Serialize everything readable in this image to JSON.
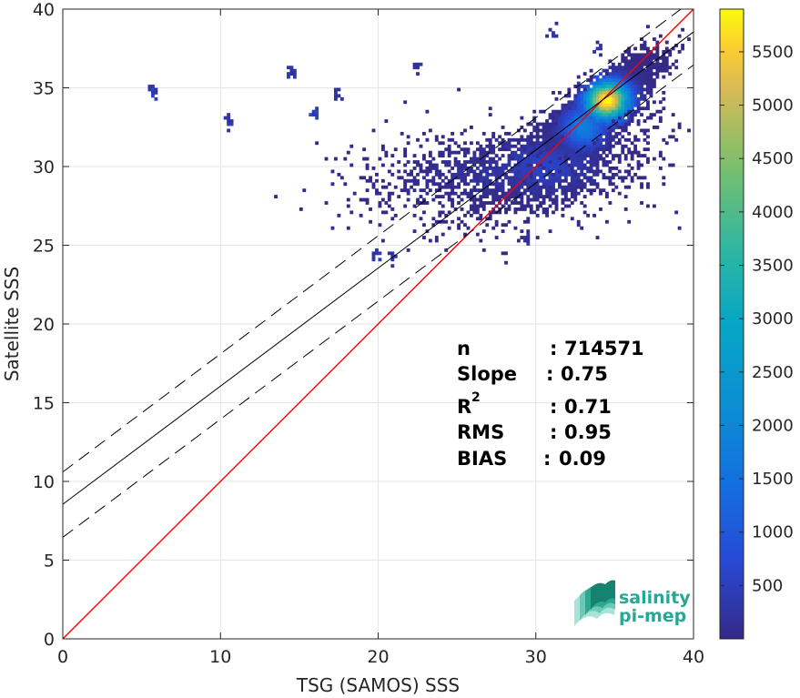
{
  "chart_data": {
    "type": "heatmap",
    "xlabel": "TSG (SAMOS) SSS",
    "ylabel": "Satellite SSS",
    "xlim": [
      0,
      40
    ],
    "ylim": [
      0,
      40
    ],
    "x_ticks": [
      "0",
      "10",
      "20",
      "30",
      "40"
    ],
    "y_ticks": [
      "0",
      "5",
      "10",
      "15",
      "20",
      "25",
      "30",
      "35",
      "40"
    ],
    "grid": true,
    "colormap": "parula",
    "colorbar": {
      "range": [
        0,
        5900
      ],
      "ticks": [
        "500",
        "1000",
        "1500",
        "2000",
        "2500",
        "3000",
        "3500",
        "4000",
        "4500",
        "5000",
        "5500"
      ]
    },
    "lines": [
      {
        "kind": "identity",
        "slope": 1.0,
        "intercept": 0.0,
        "color": "#ff0000",
        "style": "solid"
      },
      {
        "kind": "regression",
        "slope": 0.75,
        "intercept": 8.55,
        "color": "#000000",
        "style": "solid"
      },
      {
        "kind": "regression-upper",
        "slope": 0.75,
        "intercept": 10.6,
        "color": "#000000",
        "style": "dashed"
      },
      {
        "kind": "regression-lower",
        "slope": 0.75,
        "intercept": 6.45,
        "color": "#000000",
        "style": "dashed"
      }
    ],
    "density_clusters": [
      {
        "x": 34.5,
        "y": 34.2,
        "sx": 1.6,
        "sy": 1.4,
        "corr": 0.8,
        "peak": 5900,
        "n": 2600
      },
      {
        "x": 33.0,
        "y": 32.5,
        "sx": 1.6,
        "sy": 1.5,
        "corr": 0.7,
        "peak": 1800,
        "n": 1800
      },
      {
        "x": 30.5,
        "y": 30.0,
        "sx": 3.5,
        "sy": 1.8,
        "corr": 0.5,
        "peak": 600,
        "n": 1400
      },
      {
        "x": 27.0,
        "y": 29.5,
        "sx": 4.5,
        "sy": 1.5,
        "corr": 0.2,
        "peak": 250,
        "n": 700
      }
    ],
    "outlier_patches": [
      {
        "x": 16.0,
        "y": 33.5,
        "peak": 900
      },
      {
        "x": 10.5,
        "y": 33.0,
        "peak": 500
      },
      {
        "x": 5.8,
        "y": 34.8,
        "peak": 700
      },
      {
        "x": 14.5,
        "y": 36.0,
        "peak": 400
      },
      {
        "x": 17.5,
        "y": 34.6,
        "peak": 300
      },
      {
        "x": 22.5,
        "y": 36.3,
        "peak": 300
      },
      {
        "x": 21.0,
        "y": 24.3,
        "peak": 400
      },
      {
        "x": 19.8,
        "y": 24.3,
        "peak": 400
      },
      {
        "x": 29.3,
        "y": 25.3,
        "peak": 300
      },
      {
        "x": 31.0,
        "y": 38.5,
        "peak": 250
      },
      {
        "x": 34.0,
        "y": 37.5,
        "peak": 300
      }
    ]
  },
  "stats": [
    {
      "label": "n",
      "sep": ":",
      "value": "714571"
    },
    {
      "label": "Slope",
      "sep": ":",
      "value": "0.75"
    },
    {
      "label": "R",
      "sup": "2",
      "sep": ":",
      "value": "0.71"
    },
    {
      "label": "RMS",
      "sep": ":",
      "value": "0.95"
    },
    {
      "label": "BIAS",
      "sep": ":",
      "value": "0.09"
    }
  ],
  "logo": {
    "line1": "salinity",
    "line2": "pi-mep"
  }
}
